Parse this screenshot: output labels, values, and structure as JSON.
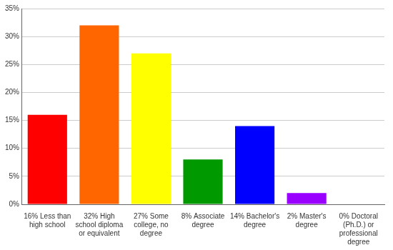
{
  "chart_data": {
    "type": "bar",
    "categories": [
      "16% Less than high school",
      "32% High school diploma or equivalent",
      "27% Some college, no degree",
      "8% Associate degree",
      "14% Bachelor's degree",
      "2% Master's degree",
      "0% Doctoral (Ph.D.) or professional degree"
    ],
    "values": [
      16,
      32,
      27,
      8,
      14,
      2,
      0
    ],
    "colors": [
      "#ff0000",
      "#ff6600",
      "#ffff00",
      "#009900",
      "#0000ff",
      "#9900ff",
      "#ff00ff"
    ],
    "ylim": [
      0,
      35
    ],
    "yticks": [
      {
        "value": 0,
        "label": "0%"
      },
      {
        "value": 5,
        "label": "5%"
      },
      {
        "value": 10,
        "label": "10%"
      },
      {
        "value": 15,
        "label": "15%"
      },
      {
        "value": 20,
        "label": "20%"
      },
      {
        "value": 25,
        "label": "25%"
      },
      {
        "value": 30,
        "label": "30%"
      },
      {
        "value": 35,
        "label": "35%"
      }
    ],
    "grid": true
  }
}
